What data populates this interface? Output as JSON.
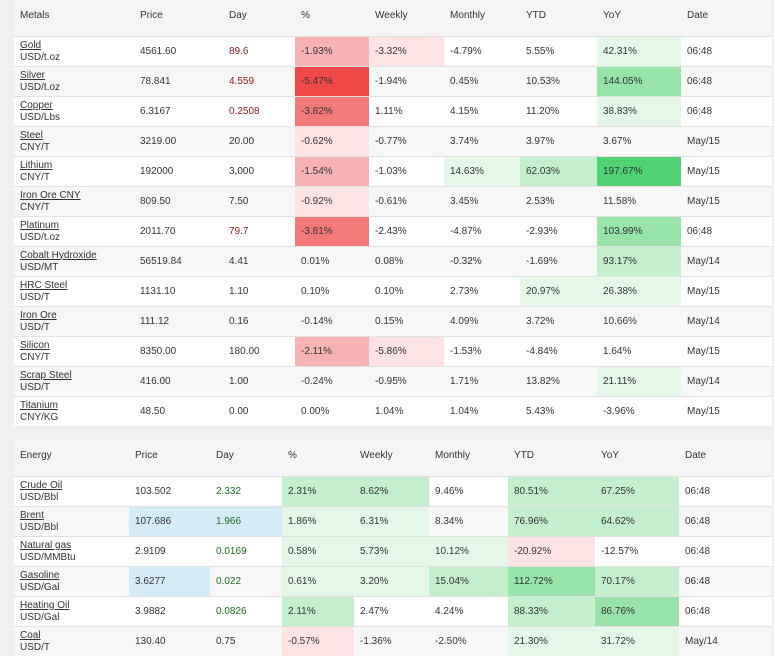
{
  "metals": {
    "headers": [
      "Metals",
      "Price",
      "Day",
      "%",
      "Weekly",
      "Monthly",
      "YTD",
      "YoY",
      "Date"
    ],
    "rows": [
      {
        "name": "Gold",
        "unit": "USD/t.oz",
        "price": "4561.60",
        "day": "89.6",
        "pct": "-1.93%",
        "weekly": "-3.32%",
        "monthly": "-4.79%",
        "ytd": "5.55%",
        "yoy": "42.31%",
        "date": "06:48"
      },
      {
        "name": "Silver",
        "unit": "USD/t.oz",
        "price": "78.841",
        "day": "4.559",
        "pct": "-5.47%",
        "weekly": "-1.94%",
        "monthly": "0.45%",
        "ytd": "10.53%",
        "yoy": "144.05%",
        "date": "06:48"
      },
      {
        "name": "Copper",
        "unit": "USD/Lbs",
        "price": "6.3167",
        "day": "0.2508",
        "pct": "-3.82%",
        "weekly": "1.11%",
        "monthly": "4.15%",
        "ytd": "11.20%",
        "yoy": "38.83%",
        "date": "06:48"
      },
      {
        "name": "Steel",
        "unit": "CNY/T",
        "price": "3219.00",
        "day": "20.00",
        "pct": "-0.62%",
        "weekly": "-0.77%",
        "monthly": "3.74%",
        "ytd": "3.97%",
        "yoy": "3.67%",
        "date": "May/15"
      },
      {
        "name": "Lithium",
        "unit": "CNY/T",
        "price": "192000",
        "day": "3,000",
        "pct": "-1.54%",
        "weekly": "-1.03%",
        "monthly": "14.63%",
        "ytd": "62.03%",
        "yoy": "197.67%",
        "date": "May/15"
      },
      {
        "name": "Iron Ore CNY",
        "unit": "CNY/T",
        "price": "809.50",
        "day": "7.50",
        "pct": "-0.92%",
        "weekly": "-0.61%",
        "monthly": "3.45%",
        "ytd": "2.53%",
        "yoy": "11.58%",
        "date": "May/15"
      },
      {
        "name": "Platinum",
        "unit": "USD/t.oz",
        "price": "2011.70",
        "day": "79.7",
        "pct": "-3.81%",
        "weekly": "-2.43%",
        "monthly": "-4.87%",
        "ytd": "-2.93%",
        "yoy": "103.99%",
        "date": "06:48"
      },
      {
        "name": "Cobalt Hydroxide",
        "unit": "USD/MT",
        "price": "56519.84",
        "day": "4.41",
        "pct": "0.01%",
        "weekly": "0.08%",
        "monthly": "-0.32%",
        "ytd": "-1.69%",
        "yoy": "93.17%",
        "date": "May/14"
      },
      {
        "name": "HRC Steel",
        "unit": "USD/T",
        "price": "1131.10",
        "day": "1.10",
        "pct": "0.10%",
        "weekly": "0.10%",
        "monthly": "2.73%",
        "ytd": "20.97%",
        "yoy": "26.38%",
        "date": "May/15"
      },
      {
        "name": "Iron Ore",
        "unit": "USD/T",
        "price": "111.12",
        "day": "0.16",
        "pct": "-0.14%",
        "weekly": "0.15%",
        "monthly": "4.09%",
        "ytd": "3.72%",
        "yoy": "10.66%",
        "date": "May/14"
      },
      {
        "name": "Silicon",
        "unit": "CNY/T",
        "price": "8350.00",
        "day": "180.00",
        "pct": "-2.11%",
        "weekly": "-5.86%",
        "monthly": "-1.53%",
        "ytd": "-4.84%",
        "yoy": "1.64%",
        "date": "May/15"
      },
      {
        "name": "Scrap Steel",
        "unit": "USD/T",
        "price": "416.00",
        "day": "1.00",
        "pct": "-0.24%",
        "weekly": "-0.95%",
        "monthly": "1.71%",
        "ytd": "13.82%",
        "yoy": "21.11%",
        "date": "May/14"
      },
      {
        "name": "Titanium",
        "unit": "CNY/KG",
        "price": "48.50",
        "day": "0.00",
        "pct": "0.00%",
        "weekly": "1.04%",
        "monthly": "1.04%",
        "ytd": "5.43%",
        "yoy": "-3.96%",
        "date": "May/15"
      }
    ]
  },
  "energy": {
    "headers": [
      "Energy",
      "Price",
      "Day",
      "%",
      "Weekly",
      "Monthly",
      "YTD",
      "YoY",
      "Date"
    ],
    "rows": [
      {
        "name": "Crude Oil",
        "unit": "USD/Bbl",
        "price": "103.502",
        "day": "2.332",
        "pct": "2.31%",
        "weekly": "8.62%",
        "monthly": "9.46%",
        "ytd": "80.51%",
        "yoy": "67.25%",
        "date": "06:48"
      },
      {
        "name": "Brent",
        "unit": "USD/Bbl",
        "price": "107.686",
        "day": "1.966",
        "pct": "1.86%",
        "weekly": "6.31%",
        "monthly": "8.34%",
        "ytd": "76.96%",
        "yoy": "64.62%",
        "date": "06:48"
      },
      {
        "name": "Natural gas",
        "unit": "USD/MMBtu",
        "price": "2.9109",
        "day": "0.0169",
        "pct": "0.58%",
        "weekly": "5.73%",
        "monthly": "10.12%",
        "ytd": "-20.92%",
        "yoy": "-12.57%",
        "date": "06:48"
      },
      {
        "name": "Gasoline",
        "unit": "USD/Gal",
        "price": "3.6277",
        "day": "0.022",
        "pct": "0.61%",
        "weekly": "3.20%",
        "monthly": "15.04%",
        "ytd": "112.72%",
        "yoy": "70.17%",
        "date": "06:48"
      },
      {
        "name": "Heating Oil",
        "unit": "USD/Gal",
        "price": "3.9882",
        "day": "0.0826",
        "pct": "2.11%",
        "weekly": "2.47%",
        "monthly": "4.24%",
        "ytd": "88.33%",
        "yoy": "86.76%",
        "date": "06:48"
      },
      {
        "name": "Coal",
        "unit": "USD/T",
        "price": "130.40",
        "day": "0.75",
        "pct": "-0.57%",
        "weekly": "-1.36%",
        "monthly": "-2.50%",
        "ytd": "21.30%",
        "yoy": "31.72%",
        "date": "May/14"
      }
    ]
  },
  "colors": {
    "row_alt": "#f7f7f7",
    "price_highlight": "#d4ecf8",
    "red_strong": "#f04848",
    "red_mid": "#f47a7a",
    "red_light": "#f7b3b3",
    "red_pale": "#fde3e3",
    "green_strong": "#4fd26f",
    "green_mid": "#98e3a8",
    "green_light": "#c3efcd",
    "green_pale": "#e4f7e8"
  }
}
